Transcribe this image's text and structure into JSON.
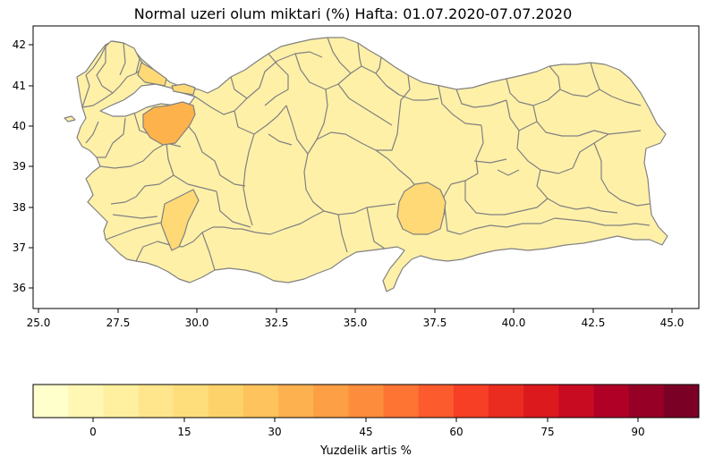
{
  "title": "Normal uzeri olum miktari (%) Hafta: 01.07.2020-07.07.2020",
  "map": {
    "x_ticks": [
      "25.0",
      "27.5",
      "30.0",
      "32.5",
      "35.0",
      "37.5",
      "40.0",
      "42.5",
      "45.0"
    ],
    "y_ticks": [
      "42",
      "41",
      "40",
      "39",
      "38",
      "37",
      "36"
    ],
    "base_fill": "#fff0a8",
    "border_color": "#808080",
    "highlights": [
      {
        "region": "bursa",
        "fill": "#feb24c"
      },
      {
        "region": "usak",
        "fill": "#fed976"
      },
      {
        "region": "malatya",
        "fill": "#fed976"
      },
      {
        "region": "tekirdag",
        "fill": "#fed976"
      },
      {
        "region": "kocaeli",
        "fill": "#fed976"
      }
    ]
  },
  "colorbar": {
    "label": "Yuzdelik artis %",
    "ticks": [
      "0",
      "15",
      "30",
      "45",
      "60",
      "75",
      "90"
    ],
    "colors": [
      "#ffffcc",
      "#fff7b3",
      "#fff09f",
      "#ffe68d",
      "#fedd7b",
      "#fed26a",
      "#fec35c",
      "#feb14f",
      "#fd9f44",
      "#fd8c3c",
      "#fd7433",
      "#fc5b2d",
      "#f63f25",
      "#ea2b20",
      "#dc191c",
      "#c90b22",
      "#b10026",
      "#960026",
      "#7b0026"
    ]
  }
}
